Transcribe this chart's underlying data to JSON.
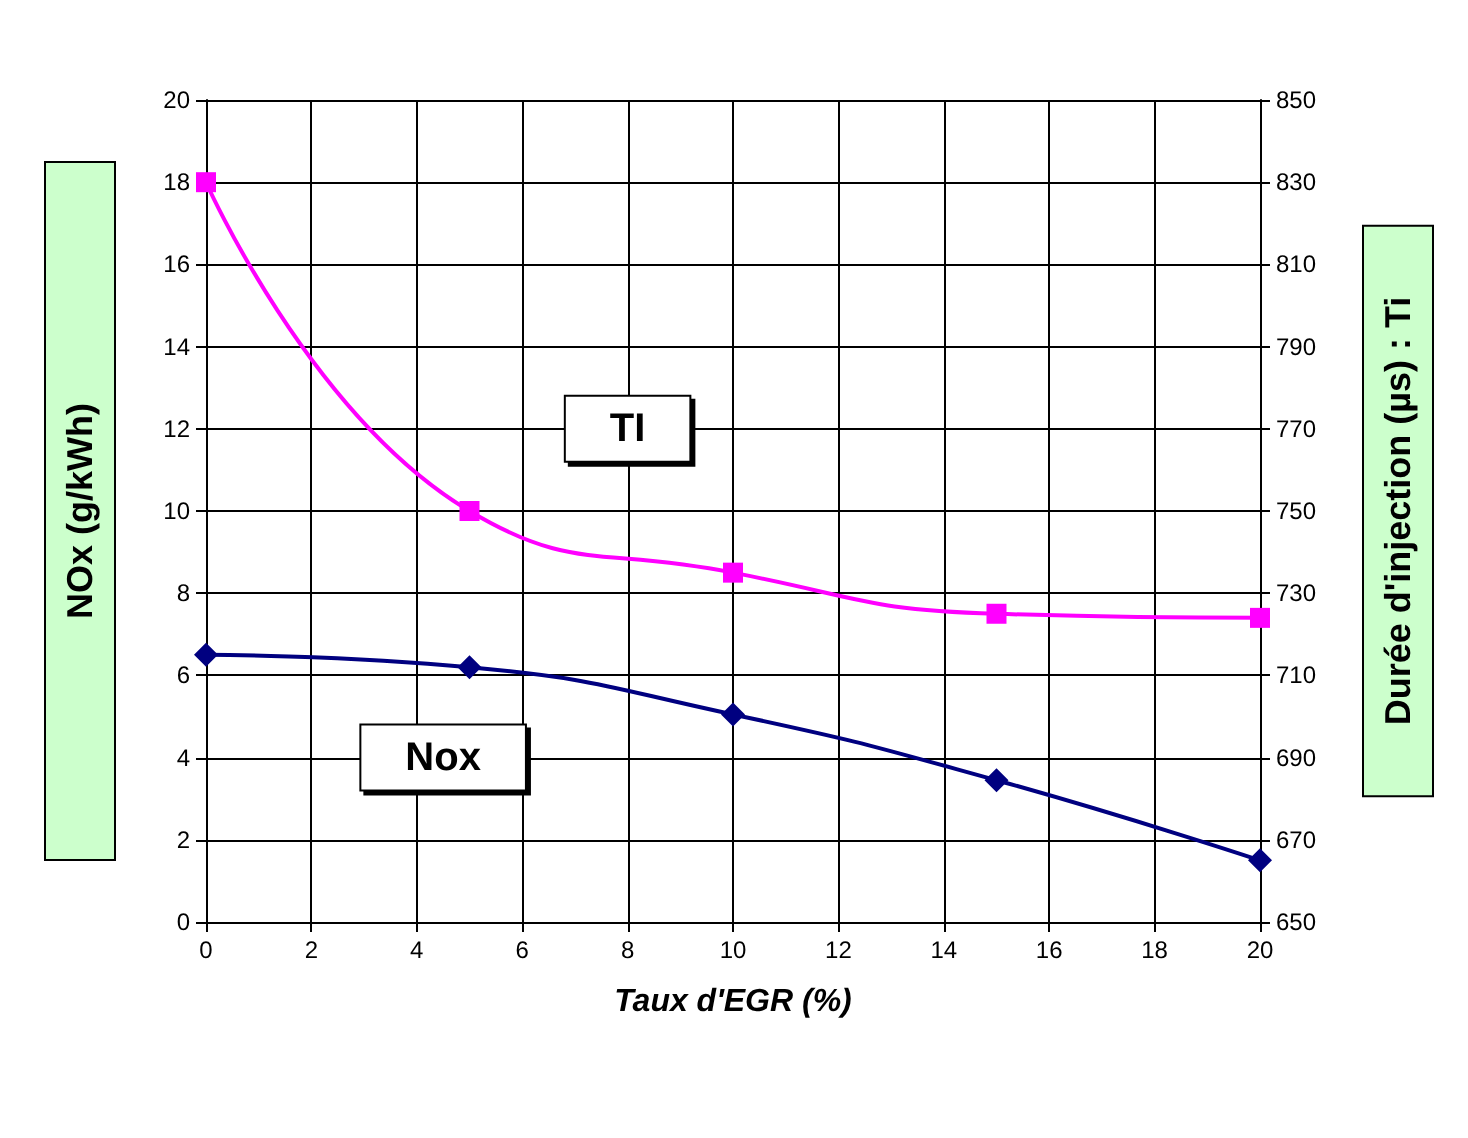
{
  "chart_data": {
    "type": "line",
    "xlabel": "Taux d'EGR (%)",
    "ylabel": "NOx (g/kWh)",
    "y2label": "Durée d'injection (µs) : Ti",
    "x": [
      0,
      5,
      10,
      15,
      20
    ],
    "xlim": [
      0,
      20
    ],
    "xticks": [
      0,
      2,
      4,
      6,
      8,
      10,
      12,
      14,
      16,
      18,
      20
    ],
    "ylim": [
      0,
      20
    ],
    "yticks": [
      0,
      2,
      4,
      6,
      8,
      10,
      12,
      14,
      16,
      18,
      20
    ],
    "y2lim": [
      650,
      850
    ],
    "y2ticks": [
      650,
      670,
      690,
      710,
      730,
      750,
      770,
      790,
      810,
      830,
      850
    ],
    "grid": true,
    "legend": false,
    "series": [
      {
        "name": "Nox",
        "color": "#000080",
        "marker": "diamond",
        "values": [
          6.5,
          6.2,
          5.05,
          3.45,
          1.5
        ]
      },
      {
        "name": "TI",
        "color": "#ff00ff",
        "marker": "square",
        "axis": "y2",
        "values": [
          830,
          750,
          735,
          725,
          724
        ]
      }
    ]
  }
}
